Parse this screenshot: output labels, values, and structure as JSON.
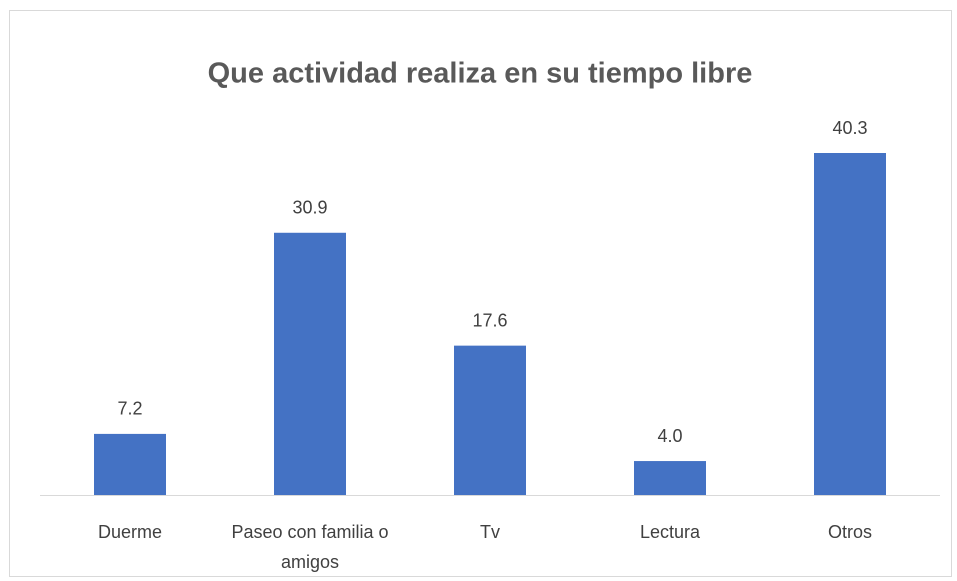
{
  "chart_data": {
    "type": "bar",
    "title": "Que actividad realiza en su tiempo libre",
    "categories": [
      "Duerme",
      "Paseo con familia o amigos",
      "Tv",
      "Lectura",
      "Otros"
    ],
    "values": [
      7.2,
      30.9,
      17.6,
      4.0,
      40.3
    ],
    "value_labels": [
      "7.2",
      "30.9",
      "17.6",
      "4.0",
      "40.3"
    ],
    "color": "#4472c4"
  }
}
